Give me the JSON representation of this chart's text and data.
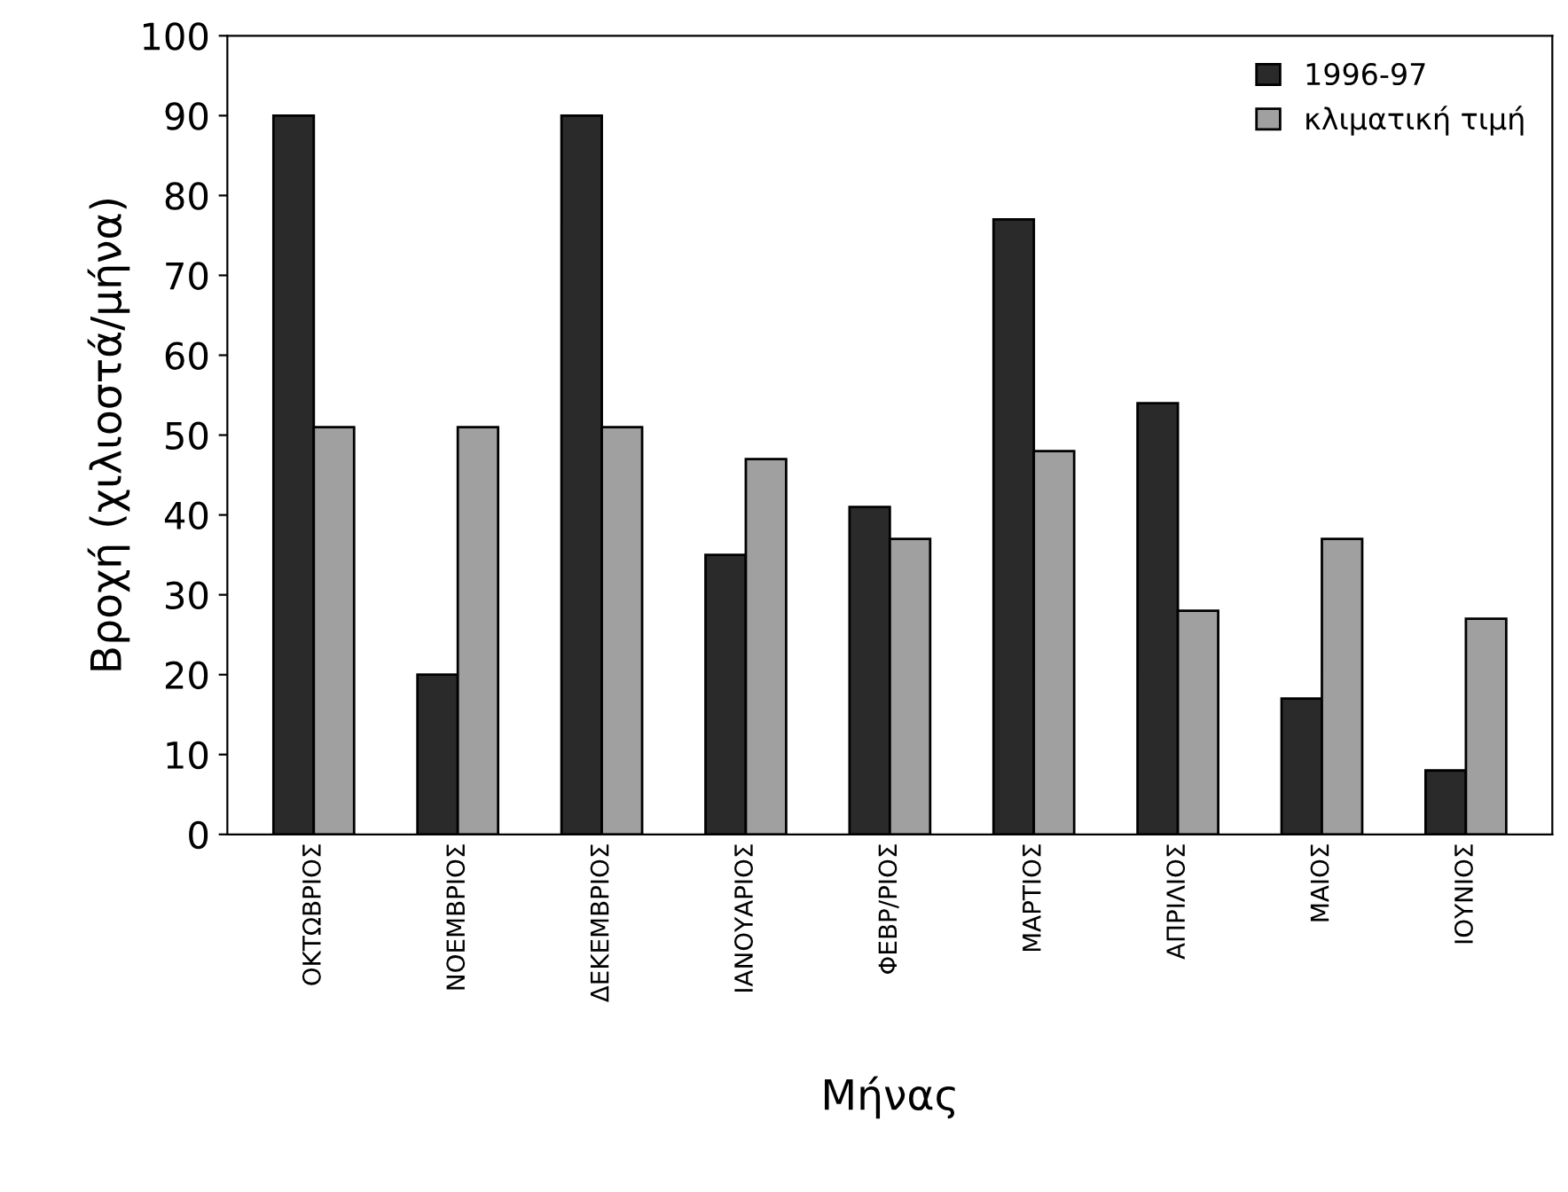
{
  "chart_data": {
    "type": "bar",
    "xlabel": "Μήνας",
    "ylabel": "Βροχή (χιλιοστά/μήνα)",
    "categories": [
      "ΟΚΤΩΒΡΙΟΣ",
      "ΝΟΕΜΒΡΙΟΣ",
      "ΔΕΚΕΜΒΡΙΟΣ",
      "ΙΑΝΟΥΑΡΙΟΣ",
      "ΦΕΒΡ/ΡΙΟΣ",
      "ΜΑΡΤΙΟΣ",
      "ΑΠΡΙΛΙΟΣ",
      "ΜΑΙΟΣ",
      "ΙΟΥΝΙΟΣ"
    ],
    "series": [
      {
        "name": "1996-97",
        "color": "#2a2a2a",
        "values": [
          90,
          20,
          90,
          35,
          41,
          77,
          54,
          17,
          8
        ]
      },
      {
        "name": "κλιματική τιμή",
        "color": "#a0a0a0",
        "values": [
          51,
          51,
          51,
          47,
          37,
          48,
          28,
          37,
          27
        ]
      }
    ],
    "ylim": [
      0,
      100
    ],
    "yticks": [
      0,
      10,
      20,
      30,
      40,
      50,
      60,
      70,
      80,
      90,
      100
    ],
    "grid": false,
    "legend": "top right"
  }
}
